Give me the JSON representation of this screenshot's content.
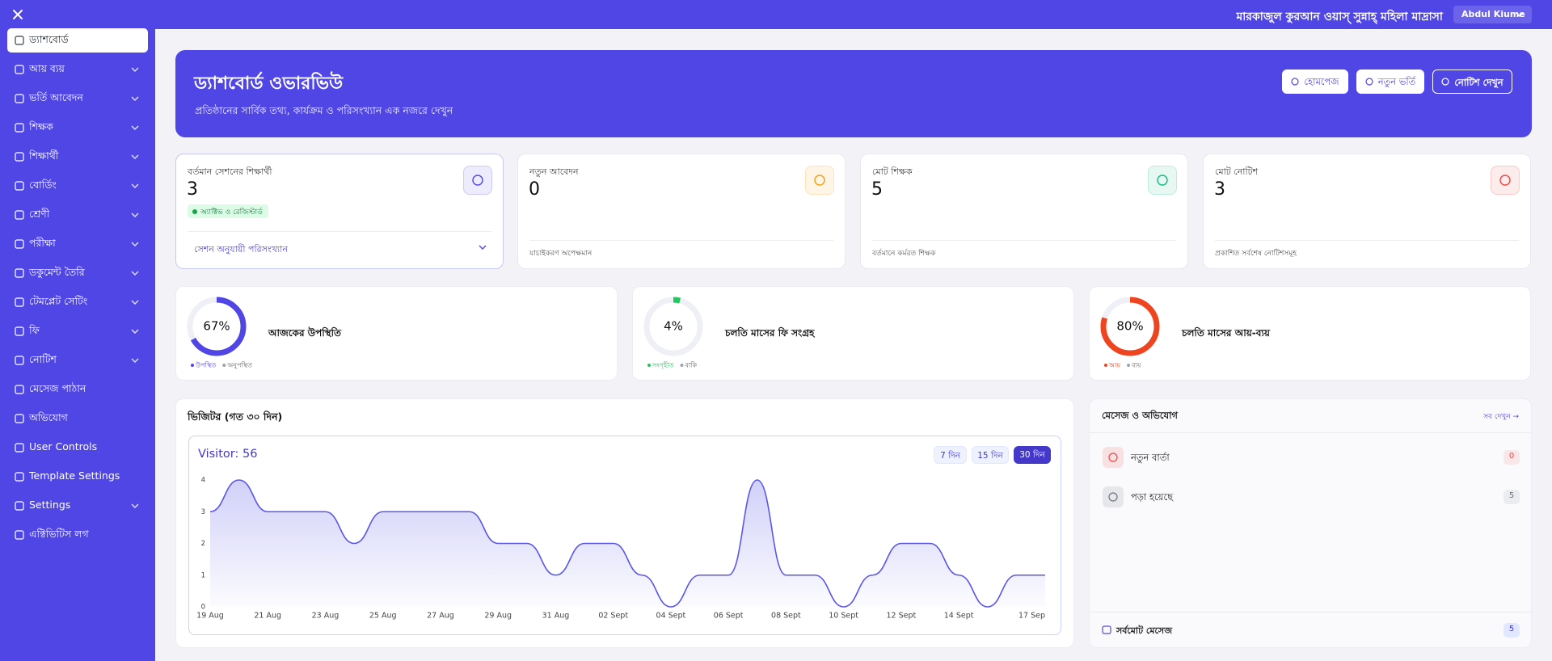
{
  "topbar": {
    "institution": "মারকাজুল কুরআন ওয়াস্ সুন্নাহ্ মহিলা মাদ্রাসা",
    "user": "Abdul Kiume"
  },
  "sidebar": {
    "items": [
      {
        "label": "ড্যাশবোর্ড",
        "expandable": false,
        "active": true
      },
      {
        "label": "আয় ব্যয়",
        "expandable": true,
        "active": false
      },
      {
        "label": "ভর্তি আবেদন",
        "expandable": true,
        "active": false
      },
      {
        "label": "শিক্ষক",
        "expandable": true,
        "active": false
      },
      {
        "label": "শিক্ষার্থী",
        "expandable": true,
        "active": false
      },
      {
        "label": "বোর্ডিং",
        "expandable": true,
        "active": false
      },
      {
        "label": "শ্রেণী",
        "expandable": true,
        "active": false
      },
      {
        "label": "পরীক্ষা",
        "expandable": true,
        "active": false
      },
      {
        "label": "ডকুমেন্ট তৈরি",
        "expandable": true,
        "active": false
      },
      {
        "label": "টেমপ্লেট সেটিং",
        "expandable": true,
        "active": false
      },
      {
        "label": "ফি",
        "expandable": true,
        "active": false
      },
      {
        "label": "নোটিশ",
        "expandable": true,
        "active": false
      },
      {
        "label": "মেসেজ পাঠান",
        "expandable": false,
        "active": false
      },
      {
        "label": "অভিযোগ",
        "expandable": false,
        "active": false
      },
      {
        "label": "User Controls",
        "expandable": false,
        "active": false
      },
      {
        "label": "Template Settings",
        "expandable": false,
        "active": false
      },
      {
        "label": "Settings",
        "expandable": true,
        "active": false
      },
      {
        "label": "এক্টিভিটিস লগ",
        "expandable": false,
        "active": false
      }
    ]
  },
  "banner": {
    "title": "ড্যাশবোর্ড ওভারভিউ",
    "subtitle": "প্রতিষ্ঠানের সার্বিক তথ্য, কার্যক্রম ও পরিসংখ্যান এক নজরে দেখুন",
    "buttons": [
      "হোমপেজ",
      "নতুন ভর্তি",
      "নোটিশ দেখুন"
    ]
  },
  "stats": [
    {
      "label": "বর্তমান সেশনের শিক্ষার্থী",
      "value": 3,
      "badge": "অ্যাক্টিভ ও রেজিস্টার্ড",
      "footer": "সেশন অনুযায়ী পরিসংখ্যান",
      "color": "#4f46e5"
    },
    {
      "label": "নতুন আবেদন",
      "value": 0,
      "footer": "যাচাইকরণ অপেক্ষমান",
      "color": "#f59e0b"
    },
    {
      "label": "মোট শিক্ষক",
      "value": 5,
      "footer": "বর্তমানে কর্মরত শিক্ষক",
      "color": "#10b981"
    },
    {
      "label": "মোট নোটিশ",
      "value": 3,
      "footer": "প্রকাশিত সর্বশেষ নোটিশসমূহ",
      "color": "#ef4444"
    }
  ],
  "progress": [
    {
      "value": 67,
      "label": "67%",
      "title": "আজকের উপস্থিতি",
      "legend": [
        "উপস্থিত",
        "অনুপস্থিত"
      ],
      "color": "#4f46e5"
    },
    {
      "value": 4,
      "label": "4%",
      "title": "চলতি মাসের ফি সংগ্রহ",
      "legend": [
        "সংগৃহীত",
        "বাকি"
      ],
      "color": "#22c55e"
    },
    {
      "value": 80,
      "label": "80%",
      "title": "চলতি মাসের আয়-ব্যয়",
      "legend": [
        "আয়",
        "ব্যয়"
      ],
      "color": "#ef4420"
    }
  ],
  "messages": {
    "title": "মেসেজ ও অভিযোগ",
    "link": "সব দেখুন →",
    "rows": [
      {
        "label": "নতুন বার্তা",
        "count": 0,
        "color": "#ef4444"
      },
      {
        "label": "পড়া হয়েছে",
        "count": 5,
        "color": "#6b7280"
      }
    ],
    "total": {
      "label": "সর্বমোট মেসেজ",
      "count": 5
    }
  },
  "chart_data": {
    "type": "area",
    "title": "ভিজিটর (গত ৩০ দিন)",
    "subtitle": "Visitor: 56",
    "range_buttons": [
      "7 দিন",
      "15 দিন",
      "30 দিন"
    ],
    "active_range": 2,
    "categories": [
      "19 Aug",
      null,
      "21 Aug",
      null,
      "23 Aug",
      null,
      "25 Aug",
      null,
      "27 Aug",
      null,
      "29 Aug",
      null,
      "31 Aug",
      null,
      "02 Sept",
      null,
      "04 Sept",
      null,
      "06 Sept",
      null,
      "08 Sept",
      null,
      "10 Sept",
      null,
      "12 Sept",
      null,
      "14 Sept",
      null,
      null,
      "17 Sep"
    ],
    "values": [
      3,
      4,
      3,
      3,
      3,
      2,
      3,
      3,
      3,
      3,
      2,
      2,
      1,
      2,
      2,
      1,
      0,
      1,
      1,
      4,
      1,
      1,
      0,
      1,
      2,
      2,
      1,
      0,
      1,
      1
    ],
    "color": "#5b57e8",
    "ylim": [
      0,
      4
    ],
    "yticks": [
      0,
      1,
      2,
      3,
      4
    ],
    "grid": false
  }
}
